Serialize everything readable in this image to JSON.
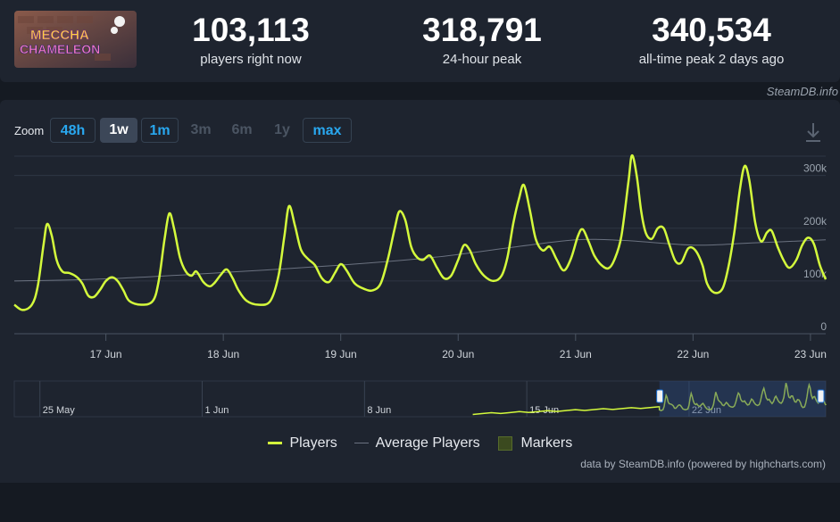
{
  "header": {
    "logo_text_1": "MECCHA",
    "logo_text_2": "CHAMELEON",
    "stats": [
      {
        "value": "103,113",
        "label": "players right now"
      },
      {
        "value": "318,791",
        "label": "24-hour peak"
      },
      {
        "value": "340,534",
        "label": "all-time peak 2 days ago"
      }
    ],
    "source": "SteamDB.info"
  },
  "zoom": {
    "label": "Zoom",
    "buttons": [
      {
        "label": "48h",
        "state": "enabled"
      },
      {
        "label": "1w",
        "state": "selected"
      },
      {
        "label": "1m",
        "state": "enabled"
      },
      {
        "label": "3m",
        "state": "disabled"
      },
      {
        "label": "6m",
        "state": "disabled"
      },
      {
        "label": "1y",
        "state": "disabled"
      },
      {
        "label": "max",
        "state": "enabled"
      }
    ]
  },
  "colors": {
    "players": "#d4fa3c",
    "average": "#6b7280",
    "markers": "#3b4a1f",
    "navigator_mask": "#2c4a7a",
    "background": "#1e242f"
  },
  "chart_data": {
    "type": "line",
    "x_unit": "days since 16 Jun 00:00",
    "xlim": [
      0.22,
      7.13
    ],
    "ylim": [
      0,
      340000
    ],
    "yticks": [
      0,
      100000,
      200000,
      300000
    ],
    "ytick_labels": [
      "0",
      "100k",
      "200k",
      "300k"
    ],
    "xticks": [
      1,
      2,
      3,
      4,
      5,
      6,
      7
    ],
    "xtick_labels": [
      "17 Jun",
      "18 Jun",
      "19 Jun",
      "20 Jun",
      "21 Jun",
      "22 Jun",
      "23 Jun"
    ],
    "series": [
      {
        "name": "Players",
        "color": "#d4fa3c",
        "points": [
          [
            0.22,
            55000
          ],
          [
            0.29,
            45000
          ],
          [
            0.37,
            55000
          ],
          [
            0.42,
            90000
          ],
          [
            0.47,
            170000
          ],
          [
            0.5,
            208000
          ],
          [
            0.54,
            185000
          ],
          [
            0.58,
            140000
          ],
          [
            0.63,
            118000
          ],
          [
            0.69,
            115000
          ],
          [
            0.75,
            108000
          ],
          [
            0.8,
            95000
          ],
          [
            0.85,
            72000
          ],
          [
            0.9,
            70000
          ],
          [
            0.95,
            83000
          ],
          [
            1.0,
            100000
          ],
          [
            1.05,
            107000
          ],
          [
            1.1,
            100000
          ],
          [
            1.15,
            82000
          ],
          [
            1.2,
            62000
          ],
          [
            1.3,
            55000
          ],
          [
            1.4,
            62000
          ],
          [
            1.45,
            100000
          ],
          [
            1.5,
            180000
          ],
          [
            1.54,
            228000
          ],
          [
            1.58,
            200000
          ],
          [
            1.63,
            145000
          ],
          [
            1.68,
            118000
          ],
          [
            1.73,
            110000
          ],
          [
            1.77,
            118000
          ],
          [
            1.83,
            98000
          ],
          [
            1.88,
            90000
          ],
          [
            1.92,
            95000
          ],
          [
            1.98,
            112000
          ],
          [
            2.03,
            122000
          ],
          [
            2.08,
            105000
          ],
          [
            2.13,
            82000
          ],
          [
            2.2,
            62000
          ],
          [
            2.3,
            55000
          ],
          [
            2.4,
            62000
          ],
          [
            2.47,
            110000
          ],
          [
            2.52,
            185000
          ],
          [
            2.56,
            242000
          ],
          [
            2.61,
            205000
          ],
          [
            2.66,
            160000
          ],
          [
            2.72,
            142000
          ],
          [
            2.78,
            130000
          ],
          [
            2.84,
            105000
          ],
          [
            2.9,
            98000
          ],
          [
            2.95,
            115000
          ],
          [
            3.0,
            132000
          ],
          [
            3.05,
            120000
          ],
          [
            3.12,
            95000
          ],
          [
            3.2,
            85000
          ],
          [
            3.27,
            82000
          ],
          [
            3.34,
            95000
          ],
          [
            3.4,
            140000
          ],
          [
            3.46,
            200000
          ],
          [
            3.5,
            232000
          ],
          [
            3.55,
            215000
          ],
          [
            3.6,
            165000
          ],
          [
            3.65,
            145000
          ],
          [
            3.7,
            140000
          ],
          [
            3.76,
            148000
          ],
          [
            3.82,
            125000
          ],
          [
            3.88,
            105000
          ],
          [
            3.94,
            110000
          ],
          [
            4.0,
            140000
          ],
          [
            4.05,
            168000
          ],
          [
            4.1,
            158000
          ],
          [
            4.15,
            132000
          ],
          [
            4.22,
            110000
          ],
          [
            4.3,
            100000
          ],
          [
            4.37,
            110000
          ],
          [
            4.42,
            145000
          ],
          [
            4.47,
            210000
          ],
          [
            4.52,
            258000
          ],
          [
            4.56,
            282000
          ],
          [
            4.61,
            235000
          ],
          [
            4.66,
            180000
          ],
          [
            4.72,
            158000
          ],
          [
            4.78,
            165000
          ],
          [
            4.84,
            140000
          ],
          [
            4.9,
            120000
          ],
          [
            4.96,
            142000
          ],
          [
            5.02,
            185000
          ],
          [
            5.06,
            198000
          ],
          [
            5.11,
            175000
          ],
          [
            5.16,
            148000
          ],
          [
            5.22,
            130000
          ],
          [
            5.28,
            124000
          ],
          [
            5.33,
            140000
          ],
          [
            5.39,
            185000
          ],
          [
            5.45,
            288000
          ],
          [
            5.48,
            338000
          ],
          [
            5.52,
            300000
          ],
          [
            5.56,
            230000
          ],
          [
            5.6,
            190000
          ],
          [
            5.65,
            180000
          ],
          [
            5.7,
            200000
          ],
          [
            5.75,
            200000
          ],
          [
            5.8,
            168000
          ],
          [
            5.85,
            138000
          ],
          [
            5.9,
            135000
          ],
          [
            5.96,
            162000
          ],
          [
            6.02,
            158000
          ],
          [
            6.08,
            130000
          ],
          [
            6.12,
            95000
          ],
          [
            6.18,
            78000
          ],
          [
            6.25,
            85000
          ],
          [
            6.3,
            125000
          ],
          [
            6.35,
            190000
          ],
          [
            6.4,
            275000
          ],
          [
            6.44,
            318000
          ],
          [
            6.48,
            290000
          ],
          [
            6.53,
            210000
          ],
          [
            6.58,
            175000
          ],
          [
            6.63,
            192000
          ],
          [
            6.67,
            195000
          ],
          [
            6.72,
            165000
          ],
          [
            6.77,
            140000
          ],
          [
            6.82,
            125000
          ],
          [
            6.88,
            140000
          ],
          [
            6.93,
            168000
          ],
          [
            6.98,
            182000
          ],
          [
            7.03,
            170000
          ],
          [
            7.08,
            130000
          ],
          [
            7.13,
            103000
          ]
        ]
      },
      {
        "name": "Average Players",
        "color": "#6b7280",
        "points": [
          [
            0.22,
            100000
          ],
          [
            1.0,
            104000
          ],
          [
            2.0,
            116000
          ],
          [
            3.0,
            130000
          ],
          [
            3.8,
            145000
          ],
          [
            4.5,
            165000
          ],
          [
            5.0,
            178000
          ],
          [
            5.4,
            177000
          ],
          [
            6.0,
            168000
          ],
          [
            6.5,
            172000
          ],
          [
            7.13,
            178000
          ]
        ]
      }
    ],
    "navigator": {
      "labels": [
        "25 May",
        "1 Jun",
        "8 Jun",
        "15 Jun",
        "22 Jun"
      ],
      "label_positions": [
        0.014,
        0.214,
        0.414,
        0.614,
        0.814
      ],
      "selected_range_fraction": [
        0.795,
        1.0
      ]
    },
    "legend": [
      {
        "label": "Players"
      },
      {
        "label": "Average Players"
      },
      {
        "label": "Markers"
      }
    ],
    "legend_position": "bottom-center",
    "grid": true
  },
  "footer": {
    "credit": "data by SteamDB.info (powered by highcharts.com)"
  }
}
